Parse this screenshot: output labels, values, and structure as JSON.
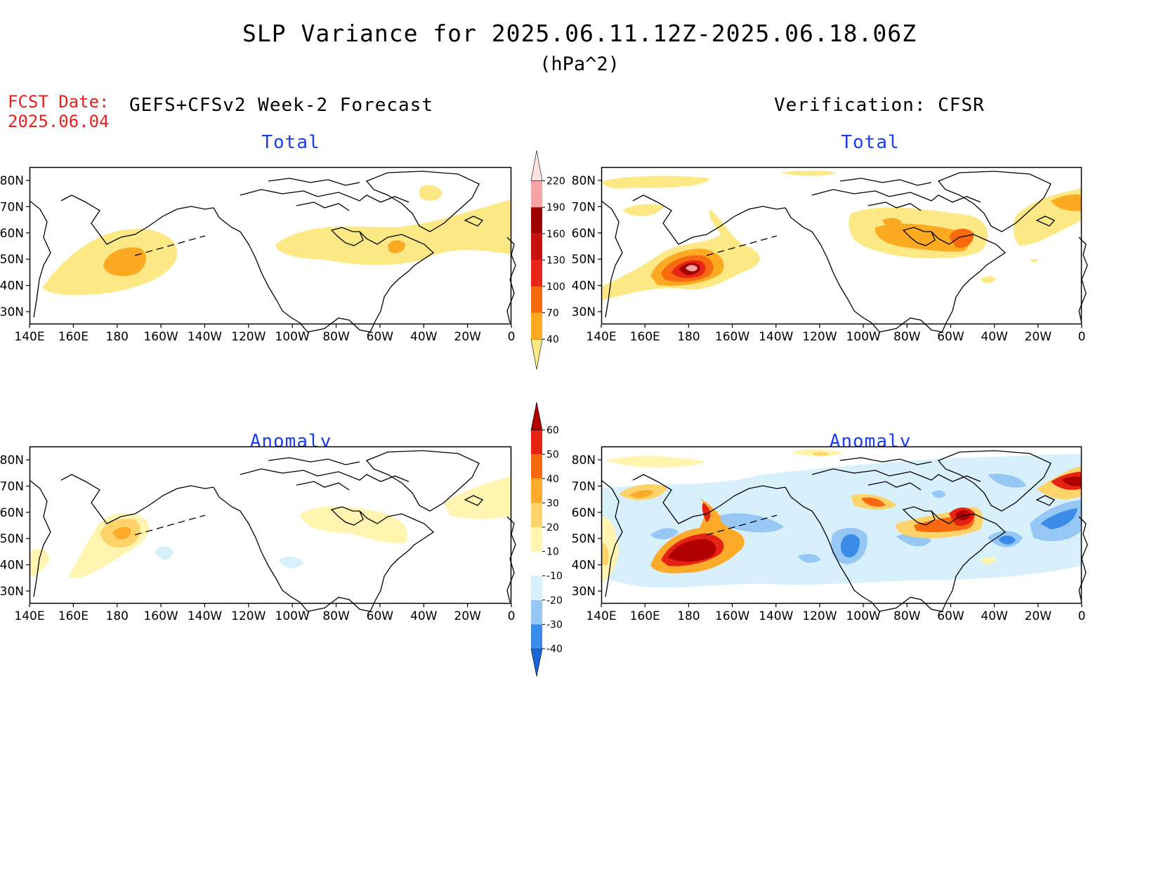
{
  "title": "SLP Variance for 2025.06.11.12Z-2025.06.18.06Z",
  "units": "(hPa^2)",
  "fcst_date_label": "FCST Date:",
  "fcst_date_value": "2025.06.04",
  "left_header": "GEFS+CFSv2 Week-2 Forecast",
  "right_header": "Verification: CFSR",
  "panel_titles": {
    "top_left": "Total",
    "top_right": "Total",
    "bottom_left": "Anomaly",
    "bottom_right": "Anomaly"
  },
  "axes": {
    "lat_ticks": [
      "80N",
      "70N",
      "60N",
      "50N",
      "40N",
      "30N"
    ],
    "lon_ticks": [
      "140E",
      "160E",
      "180",
      "160W",
      "140W",
      "120W",
      "100W",
      "80W",
      "60W",
      "40W",
      "20W",
      "0"
    ]
  },
  "colorbar_total": {
    "levels": [
      "40",
      "70",
      "100",
      "130",
      "160",
      "190",
      "220"
    ],
    "colors": [
      "#fde886",
      "#fbaa22",
      "#f86a0f",
      "#e82516",
      "#c8100f",
      "#9e0000",
      "#f5a3a3",
      "#fde0e0"
    ]
  },
  "colorbar_anomaly": {
    "levels": [
      "-40",
      "-30",
      "-20",
      "-10",
      "10",
      "20",
      "30",
      "40",
      "50",
      "60"
    ],
    "colors": [
      "#1a66d8",
      "#3a8ce8",
      "#97c8f5",
      "#d8f0fc",
      "#ffffff",
      "#fff5b0",
      "#fdd36a",
      "#fcaa2a",
      "#f86a0f",
      "#e62212",
      "#b00000"
    ]
  },
  "colors": {
    "panel_title": "#1a3cf0",
    "fcst_date": "#e8211c"
  }
}
